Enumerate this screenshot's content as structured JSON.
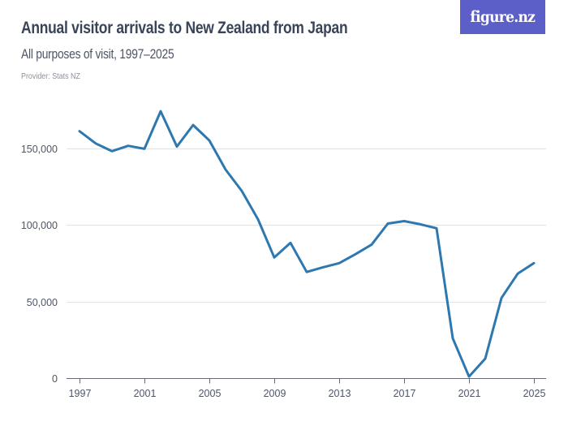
{
  "header": {
    "title": "Annual visitor arrivals to New Zealand from Japan",
    "subtitle": "All purposes of visit, 1997–2025",
    "provider": "Provider: Stats NZ",
    "logo_text": "figure.nz"
  },
  "colors": {
    "line": "#2e78b0",
    "logo_bg": "#5b5fc7",
    "gridline": "#e3e4e8",
    "axis": "#666b75",
    "text": "#3a4459"
  },
  "chart_data": {
    "type": "line",
    "title": "Annual visitor arrivals to New Zealand from Japan",
    "subtitle": "All purposes of visit, 1997–2025",
    "xlabel": "",
    "ylabel": "",
    "ylim": [
      0,
      175000
    ],
    "grid": true,
    "legend": "none",
    "x": [
      1997,
      1998,
      1999,
      2000,
      2001,
      2002,
      2003,
      2004,
      2005,
      2006,
      2007,
      2008,
      2009,
      2010,
      2011,
      2012,
      2013,
      2014,
      2015,
      2016,
      2017,
      2018,
      2019,
      2020,
      2021,
      2022,
      2023,
      2024,
      2025
    ],
    "series": [
      {
        "name": "Visitor arrivals from Japan",
        "values": [
          161000,
          153000,
          148000,
          151500,
          149500,
          174000,
          151000,
          165000,
          155000,
          136000,
          122000,
          103500,
          78700,
          88200,
          69200,
          72300,
          75000,
          80800,
          87100,
          100800,
          102400,
          100300,
          97700,
          25900,
          1000,
          12700,
          52300,
          68100,
          75000
        ]
      }
    ],
    "y_ticks": [
      {
        "value": 0,
        "label": "0"
      },
      {
        "value": 50000,
        "label": "50,000"
      },
      {
        "value": 100000,
        "label": "100,000"
      },
      {
        "value": 150000,
        "label": "150,000"
      }
    ],
    "x_ticks": [
      {
        "value": 1997,
        "label": "1997"
      },
      {
        "value": 2001,
        "label": "2001"
      },
      {
        "value": 2005,
        "label": "2005"
      },
      {
        "value": 2009,
        "label": "2009"
      },
      {
        "value": 2013,
        "label": "2013"
      },
      {
        "value": 2017,
        "label": "2017"
      },
      {
        "value": 2021,
        "label": "2021"
      },
      {
        "value": 2025,
        "label": "2025"
      }
    ]
  }
}
